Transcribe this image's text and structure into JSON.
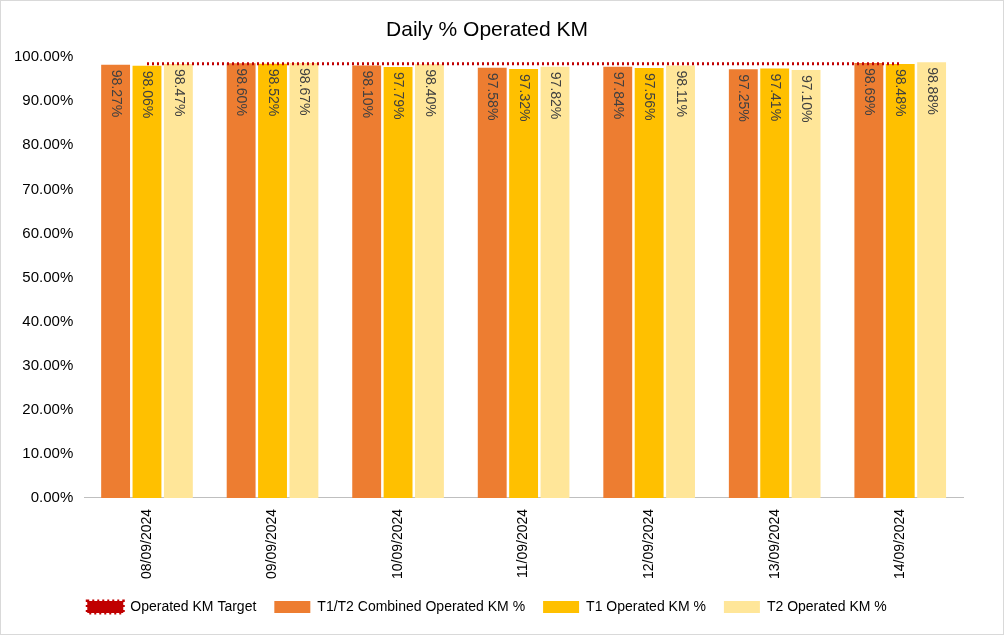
{
  "chart_data": {
    "type": "bar",
    "title": "Daily % Operated KM",
    "categories": [
      "08/09/2024",
      "09/09/2024",
      "10/09/2024",
      "11/09/2024",
      "12/09/2024",
      "13/09/2024",
      "14/09/2024"
    ],
    "series": [
      {
        "name": "T1/T2 Combined Operated KM %",
        "color": "#ED7D31",
        "values": [
          98.27,
          98.6,
          98.1,
          97.58,
          97.84,
          97.25,
          98.69
        ],
        "value_labels": [
          "98.27%",
          "98.60%",
          "98.10%",
          "97.58%",
          "97.84%",
          "97.25%",
          "98.69%"
        ]
      },
      {
        "name": "T1 Operated KM %",
        "color": "#FFC000",
        "values": [
          98.06,
          98.52,
          97.79,
          97.32,
          97.56,
          97.41,
          98.48
        ],
        "value_labels": [
          "98.06%",
          "98.52%",
          "97.79%",
          "97.32%",
          "97.56%",
          "97.41%",
          "98.48%"
        ]
      },
      {
        "name": "T2 Operated KM %",
        "color": "#FFE699",
        "values": [
          98.47,
          98.67,
          98.4,
          97.82,
          98.11,
          97.1,
          98.88
        ],
        "value_labels": [
          "98.47%",
          "98.67%",
          "98.40%",
          "97.82%",
          "98.11%",
          "97.10%",
          "98.88%"
        ]
      },
      {
        "name": "Operated KM Target",
        "color": "#C00000",
        "type": "line",
        "line_style": "dotted",
        "values": [
          98.5,
          98.5,
          98.5,
          98.5,
          98.5,
          98.5,
          98.5
        ]
      }
    ],
    "ylim": [
      0,
      100
    ],
    "yticks": [
      {
        "value": 0,
        "label": "0.00%"
      },
      {
        "value": 10,
        "label": "10.00%"
      },
      {
        "value": 20,
        "label": "20.00%"
      },
      {
        "value": 30,
        "label": "30.00%"
      },
      {
        "value": 40,
        "label": "40.00%"
      },
      {
        "value": 50,
        "label": "50.00%"
      },
      {
        "value": 60,
        "label": "60.00%"
      },
      {
        "value": 70,
        "label": "70.00%"
      },
      {
        "value": 80,
        "label": "80.00%"
      },
      {
        "value": 90,
        "label": "90.00%"
      },
      {
        "value": 100,
        "label": "100.00%"
      }
    ],
    "grid": false,
    "legend": "bottom",
    "data_labels": true
  }
}
